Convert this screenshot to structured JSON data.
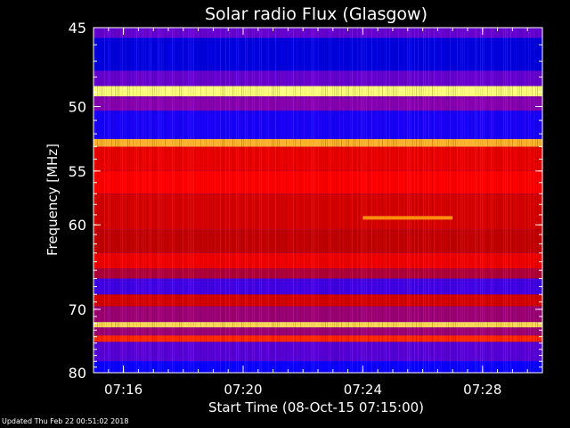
{
  "chart_data": {
    "type": "heatmap",
    "title": "Solar radio Flux (Glasgow)",
    "xlabel": "Start Time (08-Oct-15 07:15:00)",
    "ylabel": "Frequency [MHz]",
    "x_ticks": [
      "07:16",
      "07:20",
      "07:24",
      "07:28"
    ],
    "x_tick_minutes": [
      1,
      5,
      9,
      13
    ],
    "xlim_minutes": [
      0,
      15
    ],
    "y_ticks": [
      45,
      50,
      55,
      60,
      70,
      80
    ],
    "ylim": [
      45,
      80
    ],
    "y_scale": "reciprocal",
    "colormap": [
      "#000080",
      "#0000ff",
      "#8000c0",
      "#c00000",
      "#ff0000",
      "#ff8000",
      "#ffff80"
    ],
    "grid": false,
    "bands": [
      {
        "f0": 45.0,
        "f1": 45.6,
        "level": 0.3
      },
      {
        "f0": 45.6,
        "f1": 47.6,
        "level": 0.12
      },
      {
        "f0": 47.6,
        "f1": 48.6,
        "level": 0.3
      },
      {
        "f0": 48.6,
        "f1": 49.3,
        "level": 1.0
      },
      {
        "f0": 49.3,
        "f1": 50.3,
        "level": 0.35
      },
      {
        "f0": 50.3,
        "f1": 52.4,
        "level": 0.2
      },
      {
        "f0": 52.4,
        "f1": 53.0,
        "level": 0.9
      },
      {
        "f0": 53.0,
        "f1": 55.0,
        "level": 0.6
      },
      {
        "f0": 55.0,
        "f1": 57.0,
        "level": 0.66
      },
      {
        "f0": 57.0,
        "f1": 60.5,
        "level": 0.55
      },
      {
        "f0": 60.5,
        "f1": 63.0,
        "level": 0.5
      },
      {
        "f0": 63.0,
        "f1": 64.8,
        "level": 0.62
      },
      {
        "f0": 64.8,
        "f1": 66.0,
        "level": 0.45
      },
      {
        "f0": 66.0,
        "f1": 68.0,
        "level": 0.25
      },
      {
        "f0": 68.0,
        "f1": 69.6,
        "level": 0.55
      },
      {
        "f0": 69.6,
        "f1": 71.8,
        "level": 0.4
      },
      {
        "f0": 71.8,
        "f1": 72.6,
        "level": 0.95
      },
      {
        "f0": 72.6,
        "f1": 73.8,
        "level": 0.4
      },
      {
        "f0": 73.8,
        "f1": 74.8,
        "level": 0.72
      },
      {
        "f0": 74.8,
        "f1": 78.0,
        "level": 0.28
      },
      {
        "f0": 78.0,
        "f1": 80.0,
        "level": 0.18
      }
    ],
    "burst": {
      "t0": 9.0,
      "t1": 12.0,
      "f": 59.3,
      "level": 0.85
    }
  },
  "footer": "Updated Thu Feb 22 00:51:02 2018"
}
